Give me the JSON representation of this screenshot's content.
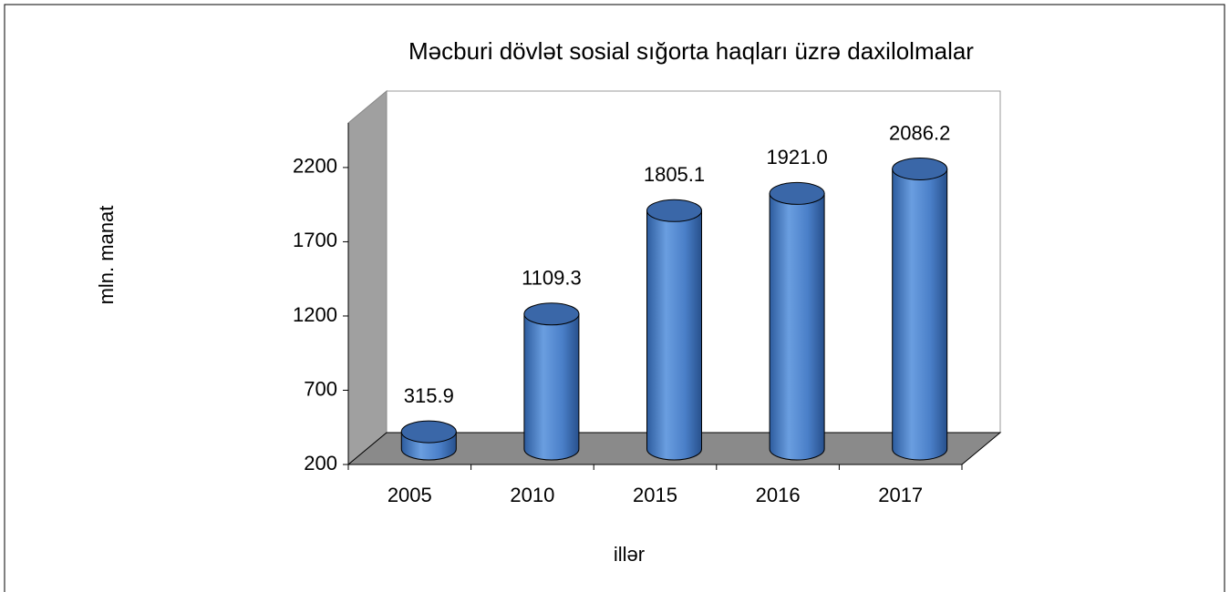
{
  "chart_data": {
    "type": "bar",
    "title": "Məcburi dövlət sosial sığorta haqları üzrə daxilolmalar",
    "x_label": "illər",
    "y_label": "mln. manat",
    "categories": [
      "2005",
      "2010",
      "2015",
      "2016",
      "2017"
    ],
    "values": [
      315.9,
      1109.3,
      1805.1,
      1921.0,
      2086.2
    ],
    "value_labels": [
      "315.9",
      "1109.3",
      "1805.1",
      "1921.0",
      "2086.2"
    ],
    "color": "#4a7fc8",
    "ylim": [
      200,
      2500
    ],
    "yticks": [
      200,
      700,
      1200,
      1700,
      2200
    ]
  }
}
